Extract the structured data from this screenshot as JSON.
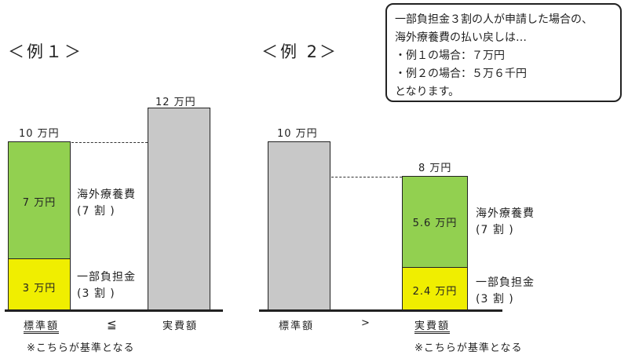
{
  "callout": {
    "lines": [
      "一部負担金３割の人が申請した場合の、",
      "海外療養費の払い戻しは…",
      "・例１の場合：７万円",
      "・例２の場合：５万６千円",
      "となります。"
    ]
  },
  "example1": {
    "title": "＜例１＞",
    "standard_total": "10 万円",
    "actual_total": "12 万円",
    "green_value": "7 万円",
    "yellow_value": "3 万円",
    "green_side": [
      "海外療養費",
      "(7 割 )"
    ],
    "yellow_side": [
      "一部負担金",
      "(3 割 )"
    ],
    "x_left": "標準額",
    "comparator": "≦",
    "x_right": "実費額",
    "note": "※こちらが基準となる"
  },
  "example2": {
    "title": "＜例 2＞",
    "standard_total": "10 万円",
    "actual_total": "8 万円",
    "green_value": "5.6 万円",
    "yellow_value": "2.4 万円",
    "green_side": [
      "海外療養費",
      "(7 割 )"
    ],
    "yellow_side": [
      "一部負担金",
      "(3 割 )"
    ],
    "x_left": "標準額",
    "comparator": ">",
    "x_right": "実費額",
    "note": "※こちらが基準となる"
  },
  "colors": {
    "bar_grey": "#c8c8c8",
    "portion_green": "#92d050",
    "portion_yellow": "#f0ee00"
  }
}
